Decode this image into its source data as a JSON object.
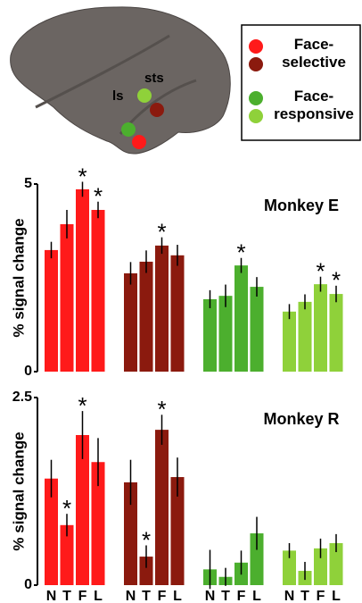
{
  "brain": {
    "labels": [
      "ls",
      "sts"
    ]
  },
  "legend": [
    {
      "label": "Face-selective",
      "colors": [
        "#ff1a1a",
        "#8b1a0e"
      ]
    },
    {
      "label": "Face-responsive",
      "colors": [
        "#4caf2e",
        "#8fd13a"
      ]
    }
  ],
  "significance_marker": "*",
  "chart_data": [
    {
      "type": "bar",
      "title": "Monkey E",
      "ylabel": "% signal change",
      "ylim": [
        0,
        5
      ],
      "yticks": [
        0,
        5
      ],
      "series": [
        {
          "color": "#ff1a1a",
          "values": [
            3.24,
            3.93,
            4.86,
            4.31
          ],
          "errors": [
            0.22,
            0.38,
            0.2,
            0.22
          ],
          "significant": [
            false,
            false,
            true,
            true
          ]
        },
        {
          "color": "#8b1a0e",
          "values": [
            2.62,
            2.93,
            3.36,
            3.1
          ],
          "errors": [
            0.3,
            0.3,
            0.22,
            0.28
          ],
          "significant": [
            false,
            false,
            true,
            false
          ]
        },
        {
          "color": "#4caf2e",
          "values": [
            1.93,
            2.02,
            2.83,
            2.26
          ],
          "errors": [
            0.24,
            0.3,
            0.2,
            0.26
          ],
          "significant": [
            false,
            false,
            true,
            false
          ]
        },
        {
          "color": "#8fd13a",
          "values": [
            1.6,
            1.86,
            2.33,
            2.07
          ],
          "errors": [
            0.2,
            0.2,
            0.2,
            0.22
          ],
          "significant": [
            false,
            false,
            true,
            true
          ]
        }
      ]
    },
    {
      "type": "bar",
      "title": "Monkey R",
      "ylabel": "% signal change",
      "ylim": [
        0,
        2.5
      ],
      "yticks": [
        0,
        2.5
      ],
      "categories": [
        "N",
        "T",
        "F",
        "L"
      ],
      "series": [
        {
          "color": "#ff1a1a",
          "values": [
            1.42,
            0.8,
            2.0,
            1.64
          ],
          "errors": [
            0.25,
            0.15,
            0.32,
            0.32
          ],
          "significant": [
            false,
            true,
            true,
            false
          ]
        },
        {
          "color": "#8b1a0e",
          "values": [
            1.37,
            0.38,
            2.07,
            1.44
          ],
          "errors": [
            0.3,
            0.15,
            0.2,
            0.26
          ],
          "significant": [
            false,
            true,
            true,
            false
          ]
        },
        {
          "color": "#4caf2e",
          "values": [
            0.21,
            0.11,
            0.3,
            0.69
          ],
          "errors": [
            0.26,
            0.12,
            0.16,
            0.22
          ],
          "significant": [
            false,
            false,
            false,
            false
          ]
        },
        {
          "color": "#8fd13a",
          "values": [
            0.46,
            0.19,
            0.49,
            0.56
          ],
          "errors": [
            0.1,
            0.12,
            0.13,
            0.12
          ],
          "significant": [
            false,
            false,
            false,
            false
          ]
        }
      ]
    }
  ]
}
